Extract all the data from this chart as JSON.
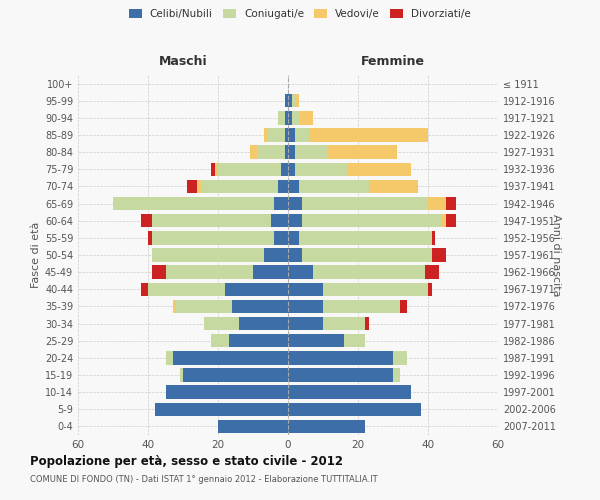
{
  "age_groups": [
    "0-4",
    "5-9",
    "10-14",
    "15-19",
    "20-24",
    "25-29",
    "30-34",
    "35-39",
    "40-44",
    "45-49",
    "50-54",
    "55-59",
    "60-64",
    "65-69",
    "70-74",
    "75-79",
    "80-84",
    "85-89",
    "90-94",
    "95-99",
    "100+"
  ],
  "birth_years": [
    "2007-2011",
    "2002-2006",
    "1997-2001",
    "1992-1996",
    "1987-1991",
    "1982-1986",
    "1977-1981",
    "1972-1976",
    "1967-1971",
    "1962-1966",
    "1957-1961",
    "1952-1956",
    "1947-1951",
    "1942-1946",
    "1937-1941",
    "1932-1936",
    "1927-1931",
    "1922-1926",
    "1917-1921",
    "1912-1916",
    "≤ 1911"
  ],
  "males": {
    "celibi": [
      20,
      38,
      35,
      30,
      33,
      17,
      14,
      16,
      18,
      10,
      7,
      4,
      5,
      4,
      3,
      2,
      1,
      1,
      1,
      1,
      0
    ],
    "coniugati": [
      0,
      0,
      0,
      1,
      2,
      5,
      10,
      16,
      22,
      25,
      32,
      35,
      34,
      46,
      22,
      18,
      8,
      5,
      2,
      0,
      0
    ],
    "vedovi": [
      0,
      0,
      0,
      0,
      0,
      0,
      0,
      1,
      0,
      0,
      0,
      0,
      0,
      0,
      1,
      1,
      2,
      1,
      0,
      0,
      0
    ],
    "divorziati": [
      0,
      0,
      0,
      0,
      0,
      0,
      0,
      0,
      2,
      4,
      0,
      1,
      3,
      0,
      3,
      1,
      0,
      0,
      0,
      0,
      0
    ]
  },
  "females": {
    "nubili": [
      22,
      38,
      35,
      30,
      30,
      16,
      10,
      10,
      10,
      7,
      4,
      3,
      4,
      4,
      3,
      2,
      2,
      2,
      1,
      1,
      0
    ],
    "coniugate": [
      0,
      0,
      0,
      2,
      4,
      6,
      12,
      22,
      30,
      32,
      37,
      38,
      40,
      36,
      20,
      15,
      9,
      4,
      2,
      1,
      0
    ],
    "vedove": [
      0,
      0,
      0,
      0,
      0,
      0,
      0,
      0,
      0,
      0,
      0,
      0,
      1,
      5,
      14,
      18,
      20,
      34,
      4,
      1,
      0
    ],
    "divorziate": [
      0,
      0,
      0,
      0,
      0,
      0,
      1,
      2,
      1,
      4,
      4,
      1,
      3,
      3,
      0,
      0,
      0,
      0,
      0,
      0,
      0
    ]
  },
  "colors": {
    "celibi": "#3d6ea8",
    "coniugati": "#c5d9a0",
    "vedovi": "#f5c96a",
    "divorziati": "#cc2222"
  },
  "xlim": 60,
  "title": "Popolazione per età, sesso e stato civile - 2012",
  "subtitle": "COMUNE DI FONDO (TN) - Dati ISTAT 1° gennaio 2012 - Elaborazione TUTTITALIA.IT",
  "xlabel_left": "Maschi",
  "xlabel_right": "Femmine",
  "ylabel_left": "Fasce di età",
  "ylabel_right": "Anni di nascita",
  "legend_labels": [
    "Celibi/Nubili",
    "Coniugati/e",
    "Vedovi/e",
    "Divorziati/e"
  ],
  "bg_color": "#f8f8f8",
  "grid_color": "#cccccc"
}
